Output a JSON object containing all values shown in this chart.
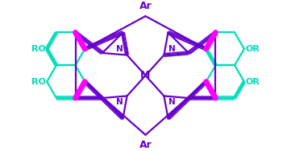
{
  "bg_color": "#ffffff",
  "porphyrin_color": "#6600CC",
  "bridge_color": "#FF00FF",
  "naph_color": "#00DDBB",
  "label_ar_color": "#6600CC",
  "label_naph_color": "#00DDBB",
  "lw_p": 1.6,
  "lw_b": 5.0,
  "lw_n": 1.6,
  "figsize": [
    3.61,
    1.88
  ],
  "dpi": 100,
  "xlim": [
    -1.1,
    1.1
  ],
  "ylim": [
    -0.62,
    0.62
  ]
}
